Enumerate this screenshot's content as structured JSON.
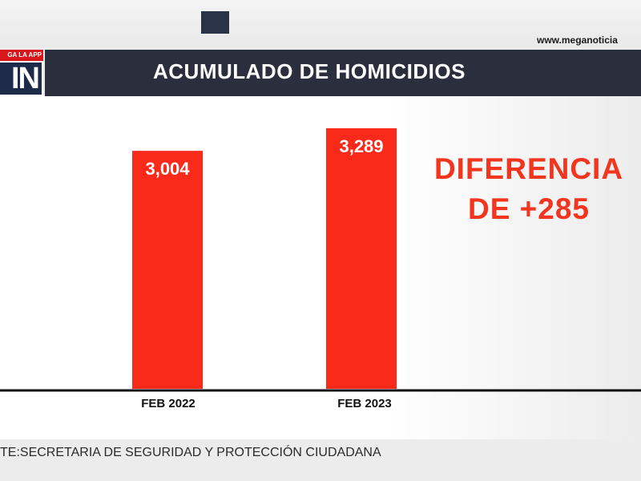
{
  "header": {
    "site_url": "www.meganoticia",
    "app_banner": "GA LA APP",
    "logo_text": "IN",
    "title": "ACUMULADO DE HOMICIDIOS"
  },
  "annotation": {
    "line1": "DIFERENCIA",
    "line2": "DE +285"
  },
  "footer": {
    "source": "TE:SECRETARIA DE SEGURIDAD Y PROTECCIÓN CIUDADANA"
  },
  "colors": {
    "bar": "#fa2a1a",
    "title_bar": "#2b2e3d",
    "annotation": "#f2351f"
  },
  "chart_data": {
    "type": "bar",
    "title": "ACUMULADO DE HOMICIDIOS",
    "categories": [
      "FEB 2022",
      "FEB 2023"
    ],
    "values": [
      3004,
      3289
    ],
    "value_labels": [
      "3,004",
      "3,289"
    ],
    "xlabel": "",
    "ylabel": "",
    "ylim": [
      0,
      3289
    ],
    "grid": false,
    "legend": "none"
  }
}
